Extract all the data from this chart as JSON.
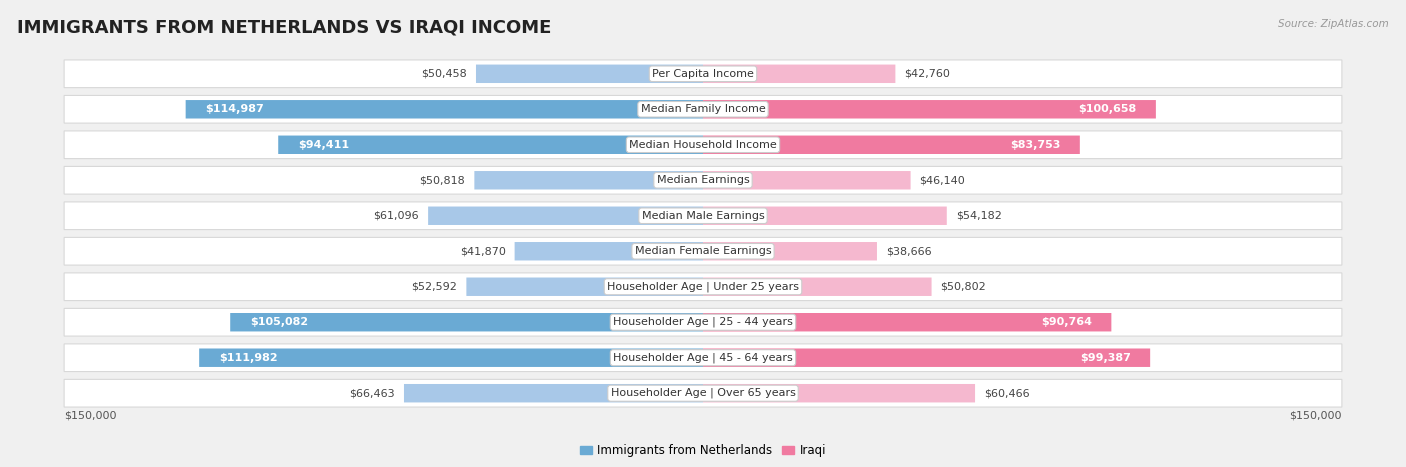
{
  "title": "IMMIGRANTS FROM NETHERLANDS VS IRAQI INCOME",
  "source": "Source: ZipAtlas.com",
  "categories": [
    "Per Capita Income",
    "Median Family Income",
    "Median Household Income",
    "Median Earnings",
    "Median Male Earnings",
    "Median Female Earnings",
    "Householder Age | Under 25 years",
    "Householder Age | 25 - 44 years",
    "Householder Age | 45 - 64 years",
    "Householder Age | Over 65 years"
  ],
  "netherlands_values": [
    50458,
    114987,
    94411,
    50818,
    61096,
    41870,
    52592,
    105082,
    111982,
    66463
  ],
  "iraqi_values": [
    42760,
    100658,
    83753,
    46140,
    54182,
    38666,
    50802,
    90764,
    99387,
    60466
  ],
  "netherlands_color_light": "#a8c8e8",
  "netherlands_color_dark": "#6aaad4",
  "iraqi_color_light": "#f5b8cf",
  "iraqi_color_dark": "#f07aa0",
  "netherlands_inside_threshold": 70000,
  "iraqi_inside_threshold": 70000,
  "max_value": 150000,
  "x_tick_labels": [
    "$150,000",
    "$150,000"
  ],
  "background_color": "#f0f0f0",
  "row_background": "#ffffff",
  "row_edge_color": "#d8d8d8",
  "title_fontsize": 13,
  "label_fontsize": 8,
  "value_fontsize": 8,
  "legend_label_netherlands": "Immigrants from Netherlands",
  "legend_label_iraqi": "Iraqi"
}
